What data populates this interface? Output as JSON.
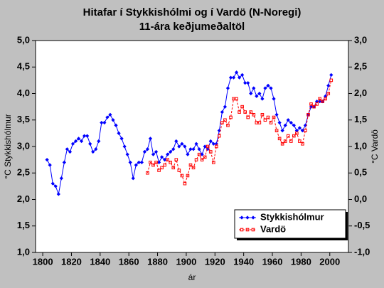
{
  "chart_data": {
    "type": "line",
    "title": "Hitafar í Stykkishólmi og í Vardö (N-Noregi)",
    "subtitle": "11-ára keðjumeðaltöl",
    "x_label": "ár",
    "y_label": "°C Stykkishólmur",
    "y2_label": "°C Vardö",
    "xlim": [
      1795,
      2013
    ],
    "xticks": [
      1800,
      1820,
      1840,
      1860,
      1880,
      1900,
      1920,
      1940,
      1960,
      1980,
      2000
    ],
    "ylim": [
      1,
      5
    ],
    "yticks": [
      {
        "value": 1,
        "label": "1,0"
      },
      {
        "value": 1.5,
        "label": "1,5"
      },
      {
        "value": 2,
        "label": "2,0"
      },
      {
        "value": 2.5,
        "label": "2,5"
      },
      {
        "value": 3,
        "label": "3,0"
      },
      {
        "value": 3.5,
        "label": "3,5"
      },
      {
        "value": 4,
        "label": "4,0"
      },
      {
        "value": 4.5,
        "label": "4,5"
      },
      {
        "value": 5,
        "label": "5,0"
      }
    ],
    "y2lim": [
      -1,
      3
    ],
    "y2ticks": [
      {
        "value": -1,
        "label": "-1,0"
      },
      {
        "value": -0.5,
        "label": "-0,5"
      },
      {
        "value": 0,
        "label": "0,0"
      },
      {
        "value": 0.5,
        "label": "0,5"
      },
      {
        "value": 1,
        "label": "1,0"
      },
      {
        "value": 1.5,
        "label": "1,5"
      },
      {
        "value": 2,
        "label": "2,0"
      },
      {
        "value": 2.5,
        "label": "2,5"
      },
      {
        "value": 3,
        "label": "3,0"
      }
    ],
    "legend": "lower right",
    "x": [
      1803,
      1805,
      1807,
      1809,
      1811,
      1813,
      1815,
      1817,
      1819,
      1821,
      1823,
      1825,
      1827,
      1829,
      1831,
      1833,
      1835,
      1837,
      1839,
      1841,
      1843,
      1845,
      1847,
      1849,
      1851,
      1853,
      1855,
      1857,
      1859,
      1861,
      1863,
      1865,
      1867,
      1869,
      1871,
      1873,
      1875,
      1877,
      1879,
      1881,
      1883,
      1885,
      1887,
      1889,
      1891,
      1893,
      1895,
      1897,
      1899,
      1901,
      1903,
      1905,
      1907,
      1909,
      1911,
      1913,
      1915,
      1917,
      1919,
      1921,
      1923,
      1925,
      1927,
      1929,
      1931,
      1933,
      1935,
      1937,
      1939,
      1941,
      1943,
      1945,
      1947,
      1949,
      1951,
      1953,
      1955,
      1957,
      1959,
      1961,
      1963,
      1965,
      1967,
      1969,
      1971,
      1973,
      1975,
      1977,
      1979,
      1981,
      1983,
      1985,
      1987,
      1989,
      1991,
      1993,
      1995,
      1997,
      1999,
      2001
    ],
    "series": [
      {
        "name": "Stykkishólmur",
        "color": "#0000ff",
        "marker": "diamond",
        "values": [
          2.75,
          2.65,
          2.3,
          2.25,
          2.1,
          2.4,
          2.7,
          2.95,
          2.9,
          3.05,
          3.1,
          3.15,
          3.1,
          3.2,
          3.2,
          3.05,
          2.9,
          2.95,
          3.1,
          3.45,
          3.45,
          3.55,
          3.6,
          3.5,
          3.4,
          3.25,
          3.15,
          3.0,
          2.85,
          2.7,
          2.4,
          2.65,
          2.7,
          2.7,
          2.9,
          2.95,
          3.15,
          2.85,
          2.9,
          2.7,
          2.8,
          2.75,
          2.85,
          2.9,
          2.95,
          3.1,
          3.0,
          3.05,
          3.0,
          2.85,
          2.95,
          2.95,
          3.05,
          2.95,
          2.85,
          3.0,
          2.95,
          3.1,
          3.05,
          3.05,
          3.3,
          3.65,
          3.75,
          4.1,
          4.3,
          4.3,
          4.4,
          4.3,
          4.35,
          4.2,
          4.2,
          4.0,
          4.1,
          3.95,
          4.0,
          3.9,
          4.1,
          4.15,
          4.1,
          3.9,
          3.6,
          3.45,
          3.3,
          3.4,
          3.5,
          3.45,
          3.4,
          3.3,
          3.35,
          3.3,
          3.4,
          3.6,
          3.75,
          3.75,
          3.85,
          3.85,
          3.85,
          3.95,
          4.15,
          4.35
        ]
      },
      {
        "name": "Vardö",
        "color": "#ff0000",
        "marker": "square",
        "dashed": true,
        "axis": "y2",
        "values": [
          null,
          null,
          null,
          null,
          null,
          null,
          null,
          null,
          null,
          null,
          null,
          null,
          null,
          null,
          null,
          null,
          null,
          null,
          null,
          null,
          null,
          null,
          null,
          null,
          null,
          null,
          null,
          null,
          null,
          null,
          null,
          null,
          null,
          null,
          null,
          0.5,
          0.7,
          0.65,
          0.7,
          0.55,
          0.6,
          0.65,
          0.75,
          0.7,
          0.6,
          0.75,
          0.55,
          0.45,
          0.3,
          0.45,
          0.65,
          0.6,
          0.75,
          0.85,
          0.75,
          0.8,
          1.0,
          0.9,
          0.7,
          1.0,
          1.2,
          1.45,
          1.5,
          1.4,
          1.55,
          1.9,
          1.9,
          1.65,
          1.75,
          1.65,
          1.55,
          1.65,
          1.6,
          1.45,
          1.45,
          1.6,
          1.5,
          1.55,
          1.45,
          1.55,
          1.3,
          1.15,
          1.05,
          1.1,
          1.2,
          1.1,
          1.2,
          1.25,
          1.1,
          1.05,
          1.3,
          1.6,
          1.8,
          1.75,
          1.8,
          1.9,
          1.85,
          1.9,
          2.0,
          2.25
        ]
      }
    ]
  }
}
